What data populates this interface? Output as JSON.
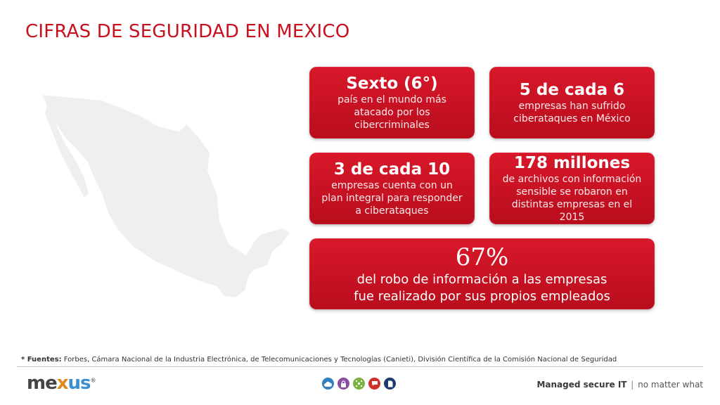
{
  "title": "CIFRAS DE SEGURIDAD EN  MEXICO",
  "cards": [
    {
      "head": "Sexto (6°)",
      "body": "país en el mundo más\natacado por los\ncibercriminales"
    },
    {
      "head": "5 de cada 6",
      "body": "empresas han sufrido\nciberataques en México"
    },
    {
      "head": "3 de cada 10",
      "body": "empresas cuenta con un\nplan integral para responder\na ciberataques"
    },
    {
      "head": "178 millones",
      "body": "de archivos con información\nsensible se robaron en\ndistintas empresas en el 2015"
    },
    {
      "head": "67%",
      "body": "del robo de información a las empresas\nfue realizado por sus propios empleados"
    }
  ],
  "source": {
    "label": "* Fuentes:",
    "text": " Forbes, Cámara Nacional de la Industria Electrónica, de Telecomunicaciones y Tecnologías (Canieti), División Científica de la Comisión Nacional de Seguridad"
  },
  "footer": {
    "logo_me": "me",
    "logo_x": "x",
    "logo_us": "us",
    "logo_mark": "®",
    "tagline_strong": "Managed secure IT",
    "tagline_sep": "|",
    "tagline_light": "no matter what"
  },
  "icons": [
    {
      "name": "cloud-icon",
      "color": "#2f7fc1"
    },
    {
      "name": "lock-icon",
      "color": "#8a4fa0"
    },
    {
      "name": "network-icon",
      "color": "#7bb241"
    },
    {
      "name": "chat-icon",
      "color": "#d0302a"
    },
    {
      "name": "document-icon",
      "color": "#1d3a6e"
    }
  ],
  "colors": {
    "accent": "#c8101e",
    "card": "#c8101e",
    "map": "#eeeeee"
  }
}
